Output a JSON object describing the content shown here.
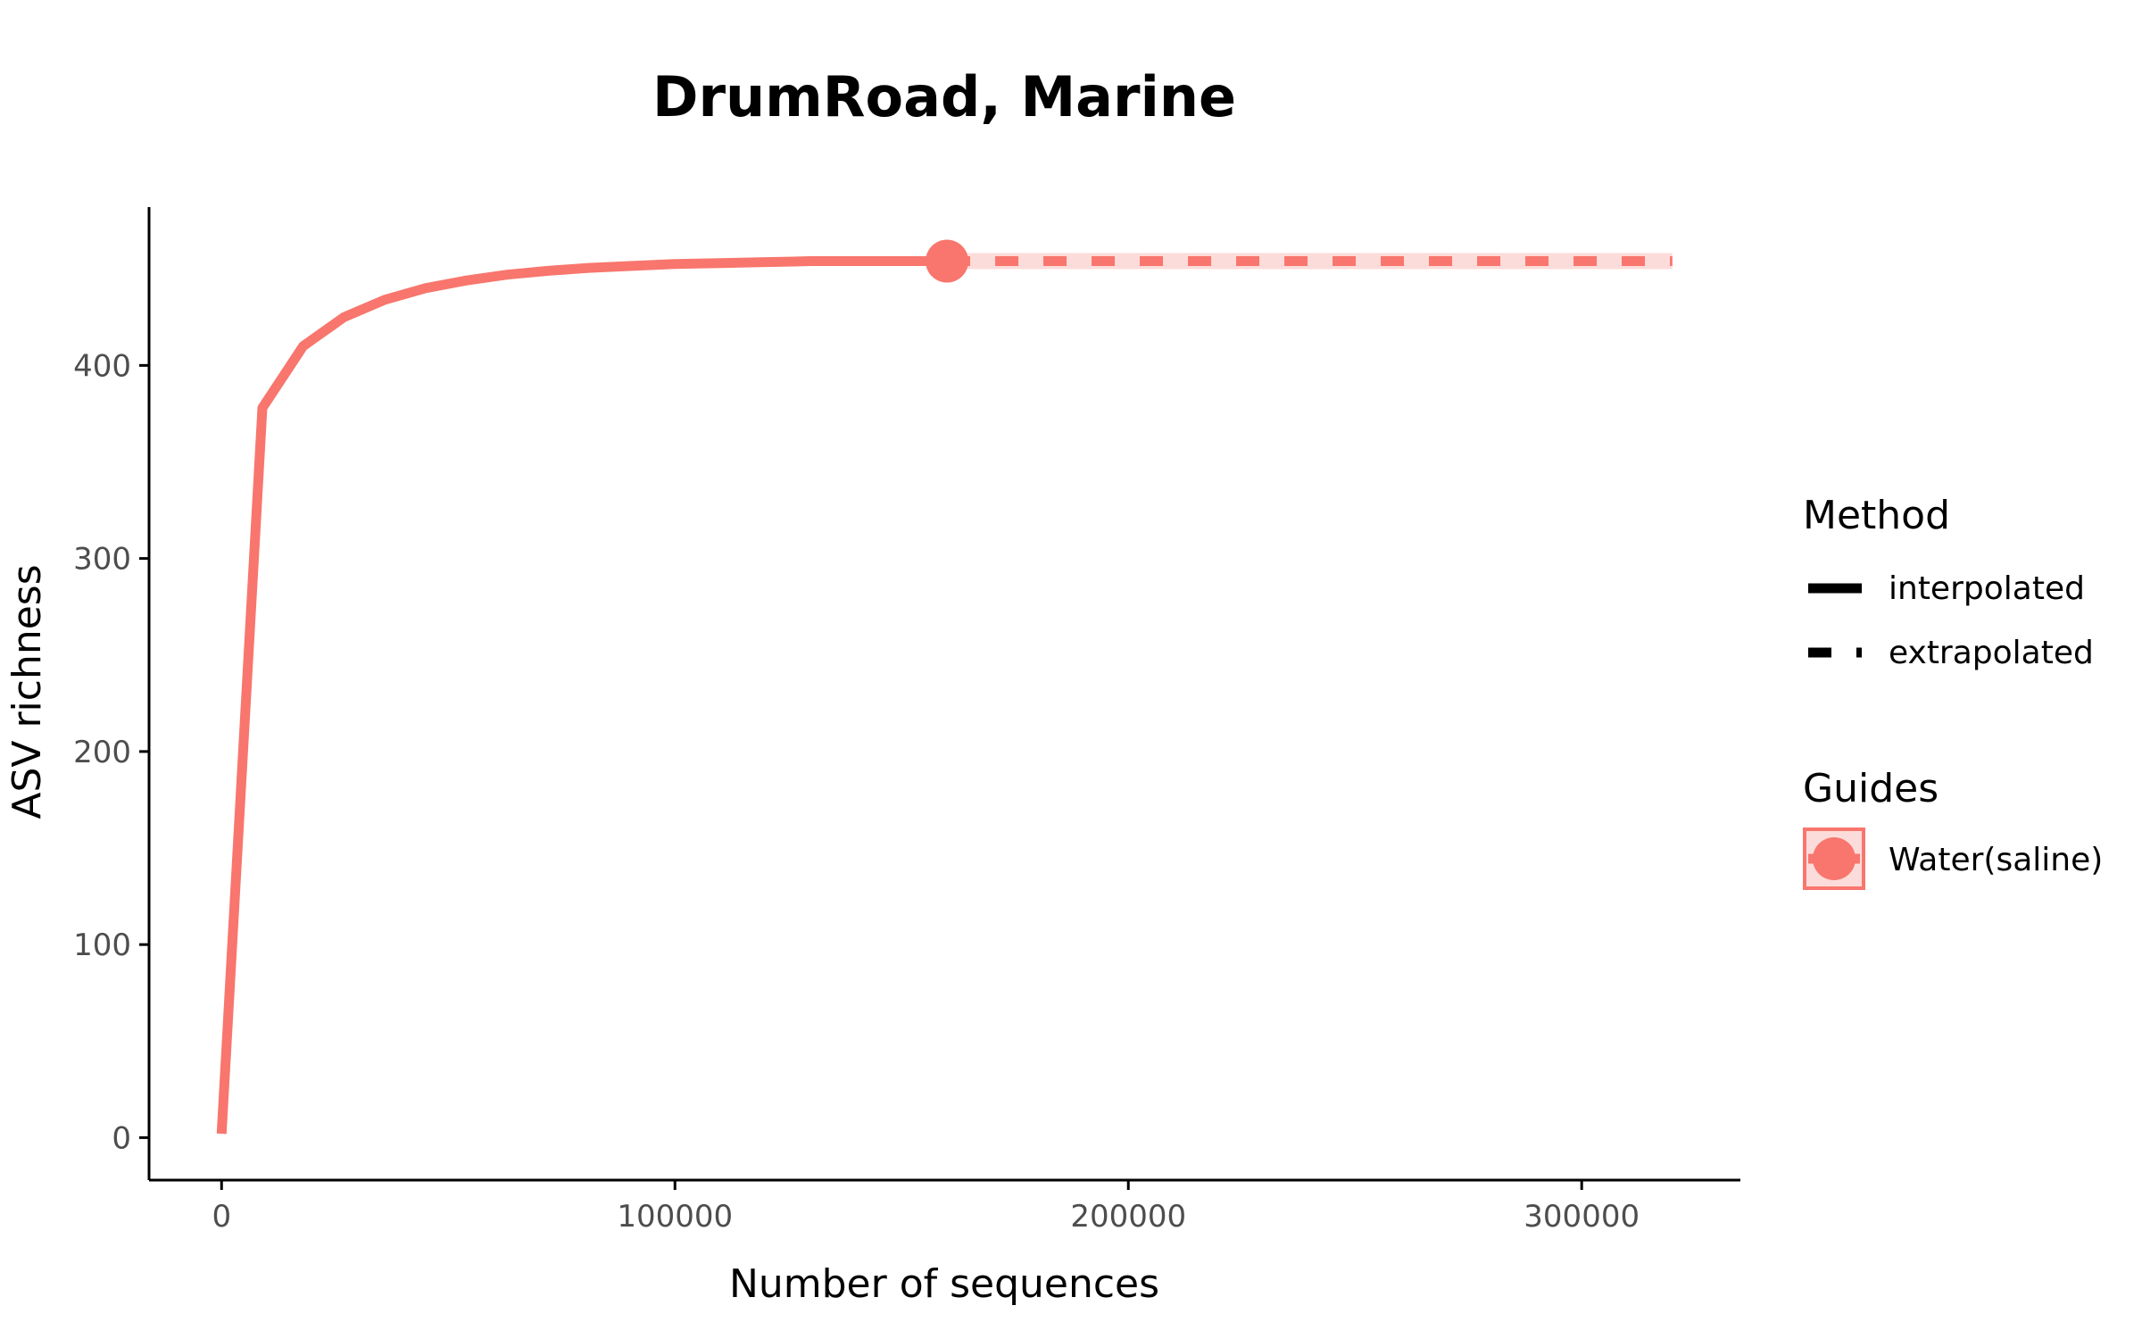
{
  "chart_data": {
    "type": "line",
    "title": "DrumRoad, Marine",
    "xlabel": "Number of sequences",
    "ylabel": "ASV richness",
    "xlim": [
      -16000,
      335000
    ],
    "ylim": [
      -22,
      482
    ],
    "x_ticks": [
      0,
      100000,
      200000,
      300000
    ],
    "y_ticks": [
      0,
      100,
      200,
      300,
      400
    ],
    "x_tick_labels": [
      "0",
      "100000",
      "200000",
      "300000"
    ],
    "y_tick_labels": [
      "0",
      "100",
      "200",
      "300",
      "400"
    ],
    "grid": false,
    "legend_position": "right",
    "colors": {
      "series": "#F8766D",
      "band": "#FCDCDA",
      "axis": "#000000"
    },
    "series": [
      {
        "name": "Water(saline)",
        "interpolated": {
          "x": [
            0,
            9000,
            18000,
            27000,
            36000,
            45000,
            54000,
            63000,
            72000,
            81000,
            90000,
            100000,
            110000,
            120000,
            130000,
            140000,
            150000,
            160000
          ],
          "y": [
            2,
            378,
            410,
            425,
            434,
            440,
            444,
            447,
            449,
            450.5,
            451.5,
            452.5,
            453,
            453.5,
            454,
            454,
            454,
            454
          ]
        },
        "observed": {
          "x": 160000,
          "y": 454
        },
        "extrapolated": {
          "x": [
            160000,
            200000,
            240000,
            280000,
            320000
          ],
          "y": [
            454,
            454,
            454,
            454,
            454
          ]
        }
      }
    ],
    "legend": {
      "method_title": "Method",
      "method_items": [
        "interpolated",
        "extrapolated"
      ],
      "guides_title": "Guides",
      "guides_items": [
        "Water(saline)"
      ]
    }
  }
}
